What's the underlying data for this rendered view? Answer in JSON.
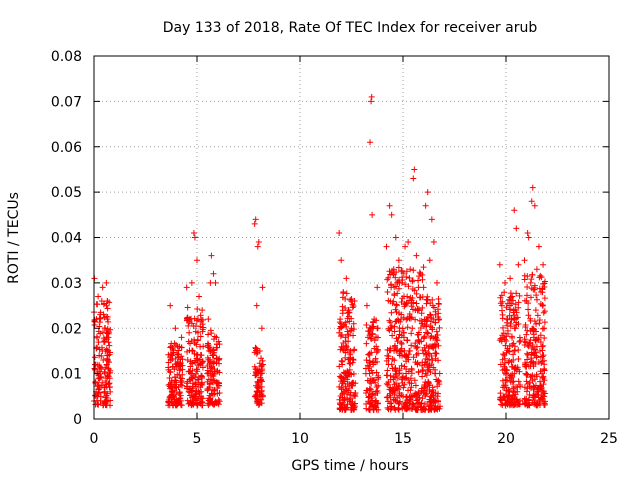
{
  "chart_data": {
    "type": "scatter",
    "title": "Day 133 of 2018, Rate Of TEC Index for receiver arub",
    "xlabel": "GPS time / hours",
    "ylabel": "ROTI / TECUs",
    "xlim": [
      0,
      25
    ],
    "ylim": [
      0,
      0.08
    ],
    "x_ticks": [
      0,
      5,
      10,
      15,
      20,
      25
    ],
    "x_tick_labels": [
      "0",
      "5",
      "10",
      "15",
      "20",
      "25"
    ],
    "y_ticks": [
      0,
      0.01,
      0.02,
      0.03,
      0.04,
      0.05,
      0.06,
      0.07,
      0.08
    ],
    "y_tick_labels": [
      "0",
      "0.01",
      "0.02",
      "0.03",
      "0.04",
      "0.05",
      "0.06",
      "0.07",
      "0.08"
    ],
    "grid": true,
    "marker": "+",
    "color": "#ff0000",
    "series": [
      {
        "points": [
          [
            0.02,
            0.031
          ],
          [
            0.05,
            0.012
          ],
          [
            0.08,
            0.008
          ],
          [
            0.1,
            0.006
          ],
          [
            0.12,
            0.022
          ],
          [
            0.15,
            0.01
          ],
          [
            0.18,
            0.005
          ],
          [
            0.2,
            0.027
          ],
          [
            0.22,
            0.009
          ],
          [
            0.25,
            0.014
          ],
          [
            0.28,
            0.007
          ],
          [
            0.3,
            0.023
          ],
          [
            0.32,
            0.004
          ],
          [
            0.35,
            0.011
          ],
          [
            0.38,
            0.026
          ],
          [
            0.4,
            0.008
          ],
          [
            0.42,
            0.029
          ],
          [
            0.45,
            0.013
          ],
          [
            0.48,
            0.017
          ],
          [
            0.5,
            0.006
          ],
          [
            0.52,
            0.02
          ],
          [
            0.55,
            0.015
          ],
          [
            0.58,
            0.009
          ],
          [
            0.6,
            0.03
          ],
          [
            0.62,
            0.012
          ],
          [
            0.65,
            0.022
          ],
          [
            0.68,
            0.004
          ],
          [
            0.7,
            0.018
          ],
          [
            0.72,
            0.011
          ],
          [
            0.75,
            0.007
          ],
          [
            3.7,
            0.025
          ],
          [
            3.75,
            0.008
          ],
          [
            3.8,
            0.014
          ],
          [
            3.85,
            0.005
          ],
          [
            3.9,
            0.011
          ],
          [
            3.95,
            0.02
          ],
          [
            4.0,
            0.007
          ],
          [
            4.05,
            0.016
          ],
          [
            4.1,
            0.004
          ],
          [
            4.15,
            0.012
          ],
          [
            4.2,
            0.009
          ],
          [
            4.25,
            0.018
          ],
          [
            4.5,
            0.029
          ],
          [
            4.55,
            0.013
          ],
          [
            4.6,
            0.006
          ],
          [
            4.65,
            0.022
          ],
          [
            4.7,
            0.01
          ],
          [
            4.75,
            0.03
          ],
          [
            4.8,
            0.015
          ],
          [
            4.85,
            0.041
          ],
          [
            4.9,
            0.04
          ],
          [
            4.95,
            0.008
          ],
          [
            5.0,
            0.035
          ],
          [
            5.05,
            0.019
          ],
          [
            5.1,
            0.027
          ],
          [
            5.15,
            0.012
          ],
          [
            5.2,
            0.006
          ],
          [
            5.25,
            0.024
          ],
          [
            5.3,
            0.016
          ],
          [
            5.5,
            0.01
          ],
          [
            5.55,
            0.022
          ],
          [
            5.6,
            0.007
          ],
          [
            5.65,
            0.03
          ],
          [
            5.7,
            0.036
          ],
          [
            5.75,
            0.014
          ],
          [
            5.8,
            0.032
          ],
          [
            5.85,
            0.011
          ],
          [
            5.9,
            0.03
          ],
          [
            5.95,
            0.018
          ],
          [
            6.0,
            0.008
          ],
          [
            6.05,
            0.013
          ],
          [
            7.8,
            0.043
          ],
          [
            7.85,
            0.044
          ],
          [
            7.9,
            0.025
          ],
          [
            7.95,
            0.038
          ],
          [
            8.0,
            0.039
          ],
          [
            8.05,
            0.015
          ],
          [
            8.1,
            0.01
          ],
          [
            8.12,
            0.006
          ],
          [
            8.15,
            0.02
          ],
          [
            8.18,
            0.029
          ],
          [
            8.2,
            0.012
          ],
          [
            11.9,
            0.041
          ],
          [
            11.95,
            0.022
          ],
          [
            12.0,
            0.035
          ],
          [
            12.05,
            0.012
          ],
          [
            12.1,
            0.028
          ],
          [
            12.15,
            0.006
          ],
          [
            12.2,
            0.018
          ],
          [
            12.25,
            0.031
          ],
          [
            12.3,
            0.01
          ],
          [
            12.35,
            0.024
          ],
          [
            12.4,
            0.004
          ],
          [
            12.45,
            0.015
          ],
          [
            12.5,
            0.02
          ],
          [
            12.55,
            0.008
          ],
          [
            12.6,
            0.013
          ],
          [
            12.65,
            0.026
          ],
          [
            13.2,
            0.01
          ],
          [
            13.25,
            0.025
          ],
          [
            13.3,
            0.018
          ],
          [
            13.35,
            0.005
          ],
          [
            13.4,
            0.061
          ],
          [
            13.45,
            0.07
          ],
          [
            13.48,
            0.071
          ],
          [
            13.5,
            0.045
          ],
          [
            13.55,
            0.012
          ],
          [
            13.6,
            0.022
          ],
          [
            13.65,
            0.008
          ],
          [
            13.7,
            0.016
          ],
          [
            13.75,
            0.029
          ],
          [
            14.2,
            0.038
          ],
          [
            14.25,
            0.028
          ],
          [
            14.3,
            0.012
          ],
          [
            14.35,
            0.047
          ],
          [
            14.4,
            0.02
          ],
          [
            14.45,
            0.045
          ],
          [
            14.5,
            0.006
          ],
          [
            14.55,
            0.033
          ],
          [
            14.6,
            0.016
          ],
          [
            14.65,
            0.04
          ],
          [
            14.7,
            0.025
          ],
          [
            14.75,
            0.009
          ],
          [
            14.8,
            0.035
          ],
          [
            14.85,
            0.014
          ],
          [
            14.9,
            0.022
          ],
          [
            14.95,
            0.03
          ],
          [
            15.0,
            0.005
          ],
          [
            15.05,
            0.018
          ],
          [
            15.1,
            0.038
          ],
          [
            15.15,
            0.011
          ],
          [
            15.2,
            0.027
          ],
          [
            15.25,
            0.039
          ],
          [
            15.3,
            0.015
          ],
          [
            15.35,
            0.033
          ],
          [
            15.4,
            0.007
          ],
          [
            15.45,
            0.02
          ],
          [
            15.5,
            0.053
          ],
          [
            15.55,
            0.055
          ],
          [
            15.6,
            0.024
          ],
          [
            15.65,
            0.036
          ],
          [
            15.7,
            0.012
          ],
          [
            15.75,
            0.029
          ],
          [
            15.8,
            0.017
          ],
          [
            15.85,
            0.032
          ],
          [
            15.9,
            0.006
          ],
          [
            15.95,
            0.021
          ],
          [
            16.0,
            0.029
          ],
          [
            16.05,
            0.012
          ],
          [
            16.1,
            0.047
          ],
          [
            16.15,
            0.022
          ],
          [
            16.2,
            0.05
          ],
          [
            16.25,
            0.008
          ],
          [
            16.3,
            0.035
          ],
          [
            16.35,
            0.016
          ],
          [
            16.4,
            0.044
          ],
          [
            16.45,
            0.025
          ],
          [
            16.5,
            0.039
          ],
          [
            16.55,
            0.01
          ],
          [
            16.6,
            0.018
          ],
          [
            16.65,
            0.03
          ],
          [
            16.7,
            0.004
          ],
          [
            16.75,
            0.022
          ],
          [
            19.7,
            0.034
          ],
          [
            19.75,
            0.012
          ],
          [
            19.8,
            0.025
          ],
          [
            19.85,
            0.007
          ],
          [
            19.9,
            0.018
          ],
          [
            19.95,
            0.03
          ],
          [
            20.0,
            0.01
          ],
          [
            20.05,
            0.022
          ],
          [
            20.1,
            0.005
          ],
          [
            20.15,
            0.015
          ],
          [
            20.2,
            0.031
          ],
          [
            20.25,
            0.009
          ],
          [
            20.3,
            0.027
          ],
          [
            20.35,
            0.013
          ],
          [
            20.4,
            0.046
          ],
          [
            20.45,
            0.02
          ],
          [
            20.5,
            0.042
          ],
          [
            20.55,
            0.006
          ],
          [
            20.6,
            0.034
          ],
          [
            20.65,
            0.017
          ],
          [
            20.9,
            0.035
          ],
          [
            20.95,
            0.012
          ],
          [
            21.0,
            0.026
          ],
          [
            21.05,
            0.041
          ],
          [
            21.1,
            0.04
          ],
          [
            21.15,
            0.008
          ],
          [
            21.2,
            0.03
          ],
          [
            21.25,
            0.048
          ],
          [
            21.3,
            0.051
          ],
          [
            21.35,
            0.018
          ],
          [
            21.4,
            0.047
          ],
          [
            21.45,
            0.024
          ],
          [
            21.5,
            0.033
          ],
          [
            21.55,
            0.006
          ],
          [
            21.6,
            0.038
          ],
          [
            21.65,
            0.015
          ],
          [
            21.7,
            0.028
          ],
          [
            21.75,
            0.01
          ],
          [
            21.8,
            0.034
          ],
          [
            21.85,
            0.02
          ]
        ]
      }
    ],
    "dense_clusters": [
      {
        "x_range": [
          0.0,
          0.8
        ],
        "y_range": [
          0.003,
          0.026
        ],
        "count": 140
      },
      {
        "x_range": [
          3.6,
          4.3
        ],
        "y_range": [
          0.003,
          0.017
        ],
        "count": 130
      },
      {
        "x_range": [
          4.5,
          5.3
        ],
        "y_range": [
          0.003,
          0.025
        ],
        "count": 150
      },
      {
        "x_range": [
          5.5,
          6.1
        ],
        "y_range": [
          0.003,
          0.02
        ],
        "count": 110
      },
      {
        "x_range": [
          7.8,
          8.2
        ],
        "y_range": [
          0.003,
          0.016
        ],
        "count": 70
      },
      {
        "x_range": [
          11.9,
          12.7
        ],
        "y_range": [
          0.002,
          0.028
        ],
        "count": 170
      },
      {
        "x_range": [
          13.2,
          13.8
        ],
        "y_range": [
          0.002,
          0.022
        ],
        "count": 110
      },
      {
        "x_range": [
          14.2,
          16.0
        ],
        "y_range": [
          0.002,
          0.034
        ],
        "count": 340
      },
      {
        "x_range": [
          16.0,
          16.8
        ],
        "y_range": [
          0.002,
          0.028
        ],
        "count": 170
      },
      {
        "x_range": [
          19.7,
          20.7
        ],
        "y_range": [
          0.003,
          0.028
        ],
        "count": 190
      },
      {
        "x_range": [
          20.9,
          21.9
        ],
        "y_range": [
          0.003,
          0.032
        ],
        "count": 210
      }
    ]
  }
}
